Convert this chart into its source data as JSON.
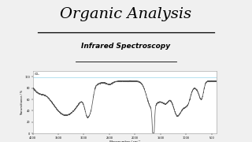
{
  "title": "Organic Analysis",
  "subtitle": "Infrared Spectroscopy",
  "title_fontsize": 14,
  "subtitle_fontsize": 6.5,
  "bg_color": "#f0f0f0",
  "chart_bg": "#ffffff",
  "line_color": "#555555",
  "xlabel": "Wavenumber / cm⁻¹",
  "ylabel": "Transmittance / %",
  "xmin": 4000,
  "xmax": 400,
  "ymin": 0,
  "ymax": 110,
  "chart_label": "CO₂",
  "x_ticks": [
    4000,
    3500,
    3000,
    2500,
    2000,
    1500,
    1000,
    500
  ],
  "y_ticks": [
    0,
    20,
    40,
    60,
    80,
    100
  ]
}
